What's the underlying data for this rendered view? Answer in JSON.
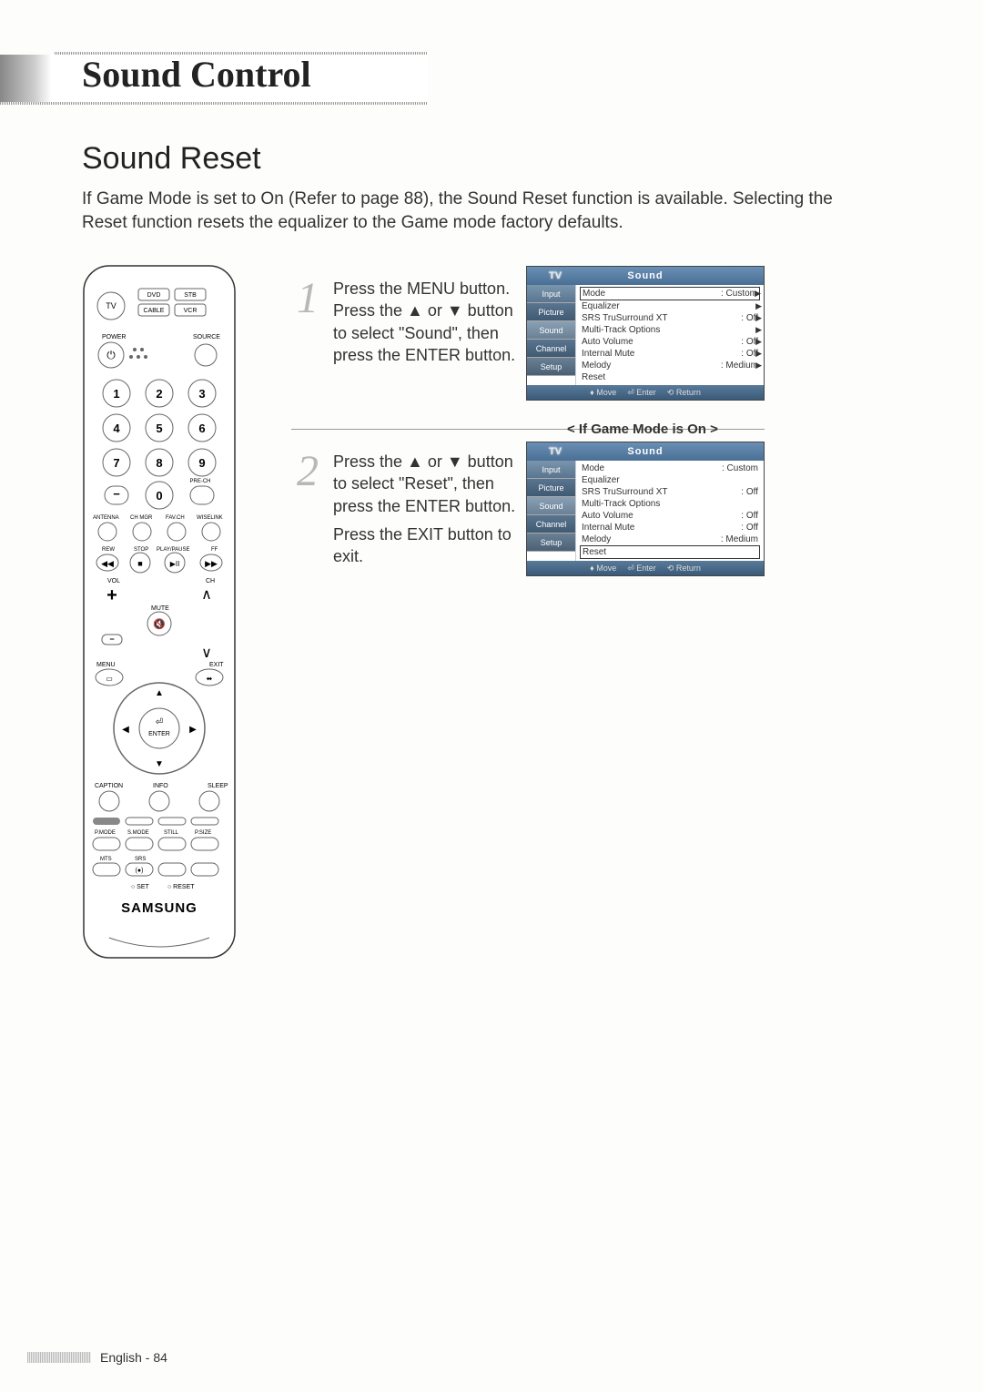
{
  "header": {
    "title": "Sound Control"
  },
  "section": {
    "title": "Sound Reset"
  },
  "intro": "If Game Mode is set to On (Refer to page 88), the Sound Reset function is available. Selecting the Reset function resets the equalizer to the Game mode factory defaults.",
  "steps": {
    "s1": {
      "num": "1",
      "text": "Press the MENU button. Press the ▲ or ▼ button to select \"Sound\", then press the ENTER button."
    },
    "s2": {
      "num": "2",
      "text": "Press the ▲ or ▼ button to select \"Reset\", then press the ENTER button.",
      "text2": "Press the EXIT button to exit."
    }
  },
  "game_mode_label": "< If Game Mode is On >",
  "osd": {
    "tv": "TV",
    "title": "Sound",
    "sidebar": [
      "Input",
      "Picture",
      "Sound",
      "Channel",
      "Setup"
    ],
    "menu1": [
      {
        "label": "Mode",
        "value": ": Custom",
        "boxed": true,
        "arrow": true
      },
      {
        "label": "Equalizer",
        "value": "",
        "arrow": true
      },
      {
        "label": "SRS TruSurround XT",
        "value": ": Off",
        "arrow": true
      },
      {
        "label": "Multi-Track Options",
        "value": "",
        "arrow": true
      },
      {
        "label": "Auto Volume",
        "value": ": Off",
        "arrow": true
      },
      {
        "label": "Internal Mute",
        "value": ": Off",
        "arrow": true
      },
      {
        "label": "Melody",
        "value": ": Medium",
        "arrow": true
      },
      {
        "label": "Reset",
        "value": "",
        "arrow": false
      }
    ],
    "menu2": [
      {
        "label": "Mode",
        "value": ": Custom"
      },
      {
        "label": "Equalizer",
        "value": ""
      },
      {
        "label": "SRS TruSurround XT",
        "value": ": Off"
      },
      {
        "label": "Multi-Track Options",
        "value": ""
      },
      {
        "label": "Auto Volume",
        "value": ": Off"
      },
      {
        "label": "Internal Mute",
        "value": ": Off"
      },
      {
        "label": "Melody",
        "value": ": Medium"
      },
      {
        "label": "Reset",
        "value": "",
        "boxed": true
      }
    ],
    "footer": {
      "move": "Move",
      "enter": "Enter",
      "return": "Return"
    }
  },
  "remote": {
    "tv": "TV",
    "dvd": "DVD",
    "stb": "STB",
    "cable": "CABLE",
    "vcr": "VCR",
    "power": "POWER",
    "source": "SOURCE",
    "numbers": [
      "1",
      "2",
      "3",
      "4",
      "5",
      "6",
      "7",
      "8",
      "9",
      "0"
    ],
    "prech": "PRE-CH",
    "antenna": "ANTENNA",
    "chmgr": "CH MGR",
    "favch": "FAV.CH",
    "wiselink": "WISELINK",
    "rew": "REW",
    "stop": "STOP",
    "playpause": "PLAY/PAUSE",
    "ff": "FF",
    "vol": "VOL",
    "ch": "CH",
    "mute": "MUTE",
    "menu": "MENU",
    "exit": "EXIT",
    "enter": "ENTER",
    "caption": "CAPTION",
    "info": "INFO",
    "sleep": "SLEEP",
    "pmode": "P.MODE",
    "smode": "S.MODE",
    "still": "STILL",
    "psize": "P.SIZE",
    "mts": "MTS",
    "srs": "SRS",
    "set": "SET",
    "reset": "RESET",
    "brand": "SAMSUNG"
  },
  "footer": {
    "text": "English - 84"
  },
  "colors": {
    "osd_header_bg": "#5a7a9a",
    "osd_sidebar_bg": "#5a7590",
    "text": "#333333",
    "background": "#fdfdfc"
  }
}
